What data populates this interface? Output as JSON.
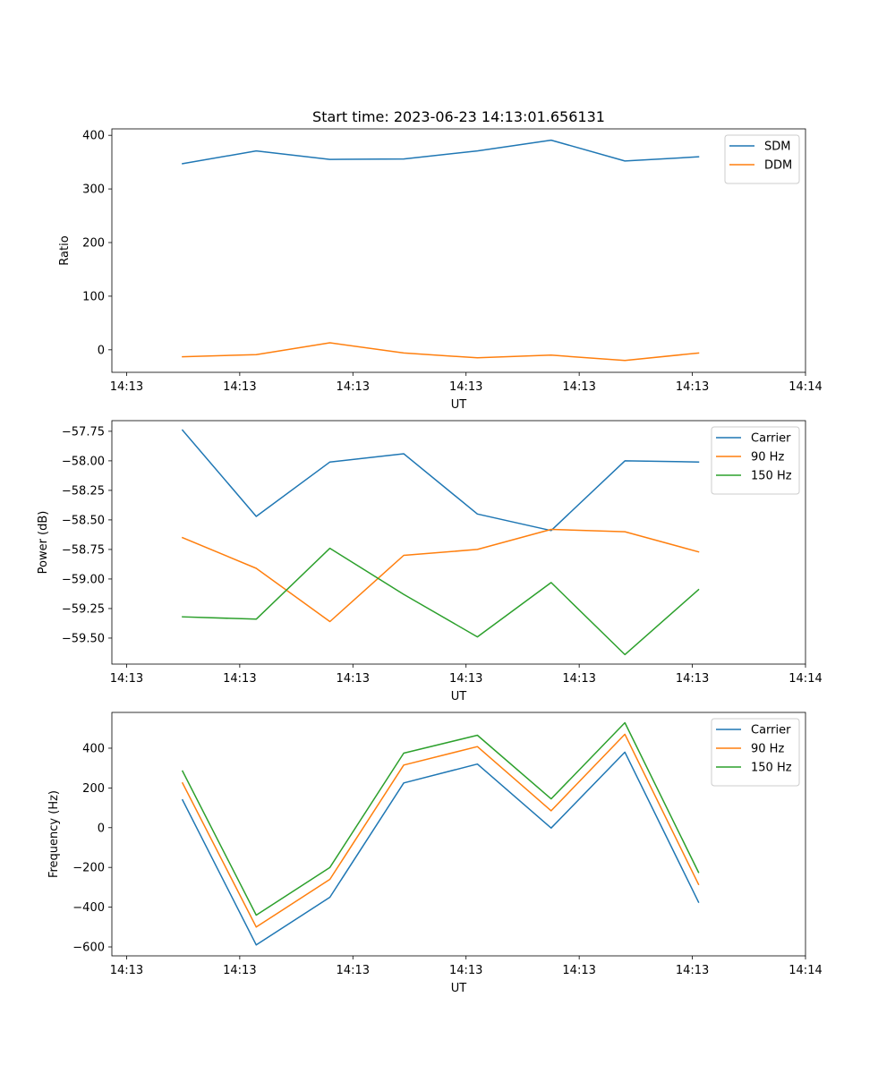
{
  "figure": {
    "title": "Start time: 2023-06-23 14:13:01.656131"
  },
  "x_axis": {
    "label": "UT",
    "tick_labels": [
      "14:13",
      "14:13",
      "14:13",
      "14:13",
      "14:13",
      "14:13",
      "14:14"
    ],
    "ticks": [
      0,
      10,
      20,
      30,
      40,
      50,
      60
    ],
    "range": [
      -1.3,
      60
    ],
    "x": [
      4.94,
      11.46,
      17.97,
      24.49,
      31.0,
      37.52,
      44.04,
      50.55
    ]
  },
  "colors": {
    "blue": "#1f77b4",
    "orange": "#ff7f0e",
    "green": "#2ca02c"
  },
  "chart_data": [
    {
      "type": "line",
      "title": "Start time: 2023-06-23 14:13:01.656131",
      "xlabel": "UT",
      "ylabel": "Ratio",
      "ylim": [
        -42,
        412
      ],
      "yticks": [
        0,
        100,
        200,
        300,
        400
      ],
      "ytick_labels": [
        "0",
        "100",
        "200",
        "300",
        "400"
      ],
      "legend_position": "top-right",
      "series": [
        {
          "name": "SDM",
          "color": "#1f77b4",
          "values": [
            347,
            371,
            355,
            356,
            371,
            391,
            352,
            360
          ]
        },
        {
          "name": "DDM",
          "color": "#ff7f0e",
          "values": [
            -13,
            -9,
            13,
            -6,
            -15,
            -10,
            -20,
            -6
          ]
        }
      ]
    },
    {
      "type": "line",
      "title": "",
      "xlabel": "UT",
      "ylabel": "Power (dB)",
      "ylim": [
        -59.72,
        -57.66
      ],
      "yticks": [
        -59.5,
        -59.25,
        -59.0,
        -58.75,
        -58.5,
        -58.25,
        -58.0,
        -57.75
      ],
      "ytick_labels": [
        "−59.50",
        "−59.25",
        "−59.00",
        "−58.75",
        "−58.50",
        "−58.25",
        "−58.00",
        "−57.75"
      ],
      "legend_position": "top-right",
      "series": [
        {
          "name": "Carrier",
          "color": "#1f77b4",
          "values": [
            -57.74,
            -58.47,
            -58.01,
            -57.94,
            -58.45,
            -58.59,
            -58.0,
            -58.01
          ]
        },
        {
          "name": "90 Hz",
          "color": "#ff7f0e",
          "values": [
            -58.65,
            -58.91,
            -59.36,
            -58.8,
            -58.75,
            -58.58,
            -58.6,
            -58.77
          ]
        },
        {
          "name": "150 Hz",
          "color": "#2ca02c",
          "values": [
            -59.32,
            -59.34,
            -58.74,
            -59.13,
            -59.49,
            -59.03,
            -59.64,
            -59.09
          ]
        }
      ]
    },
    {
      "type": "line",
      "title": "",
      "xlabel": "UT",
      "ylabel": "Frequency (Hz)",
      "ylim": [
        -645,
        580
      ],
      "yticks": [
        -600,
        -400,
        -200,
        0,
        200,
        400
      ],
      "ytick_labels": [
        "−600",
        "−400",
        "−200",
        "0",
        "200",
        "400"
      ],
      "legend_position": "top-right",
      "series": [
        {
          "name": "Carrier",
          "color": "#1f77b4",
          "values": [
            140,
            -590,
            -350,
            225,
            320,
            -2,
            380,
            -375
          ]
        },
        {
          "name": "90 Hz",
          "color": "#ff7f0e",
          "values": [
            225,
            -500,
            -260,
            315,
            408,
            85,
            470,
            -285
          ]
        },
        {
          "name": "150 Hz",
          "color": "#2ca02c",
          "values": [
            285,
            -440,
            -200,
            375,
            465,
            145,
            528,
            -225
          ]
        }
      ]
    }
  ]
}
